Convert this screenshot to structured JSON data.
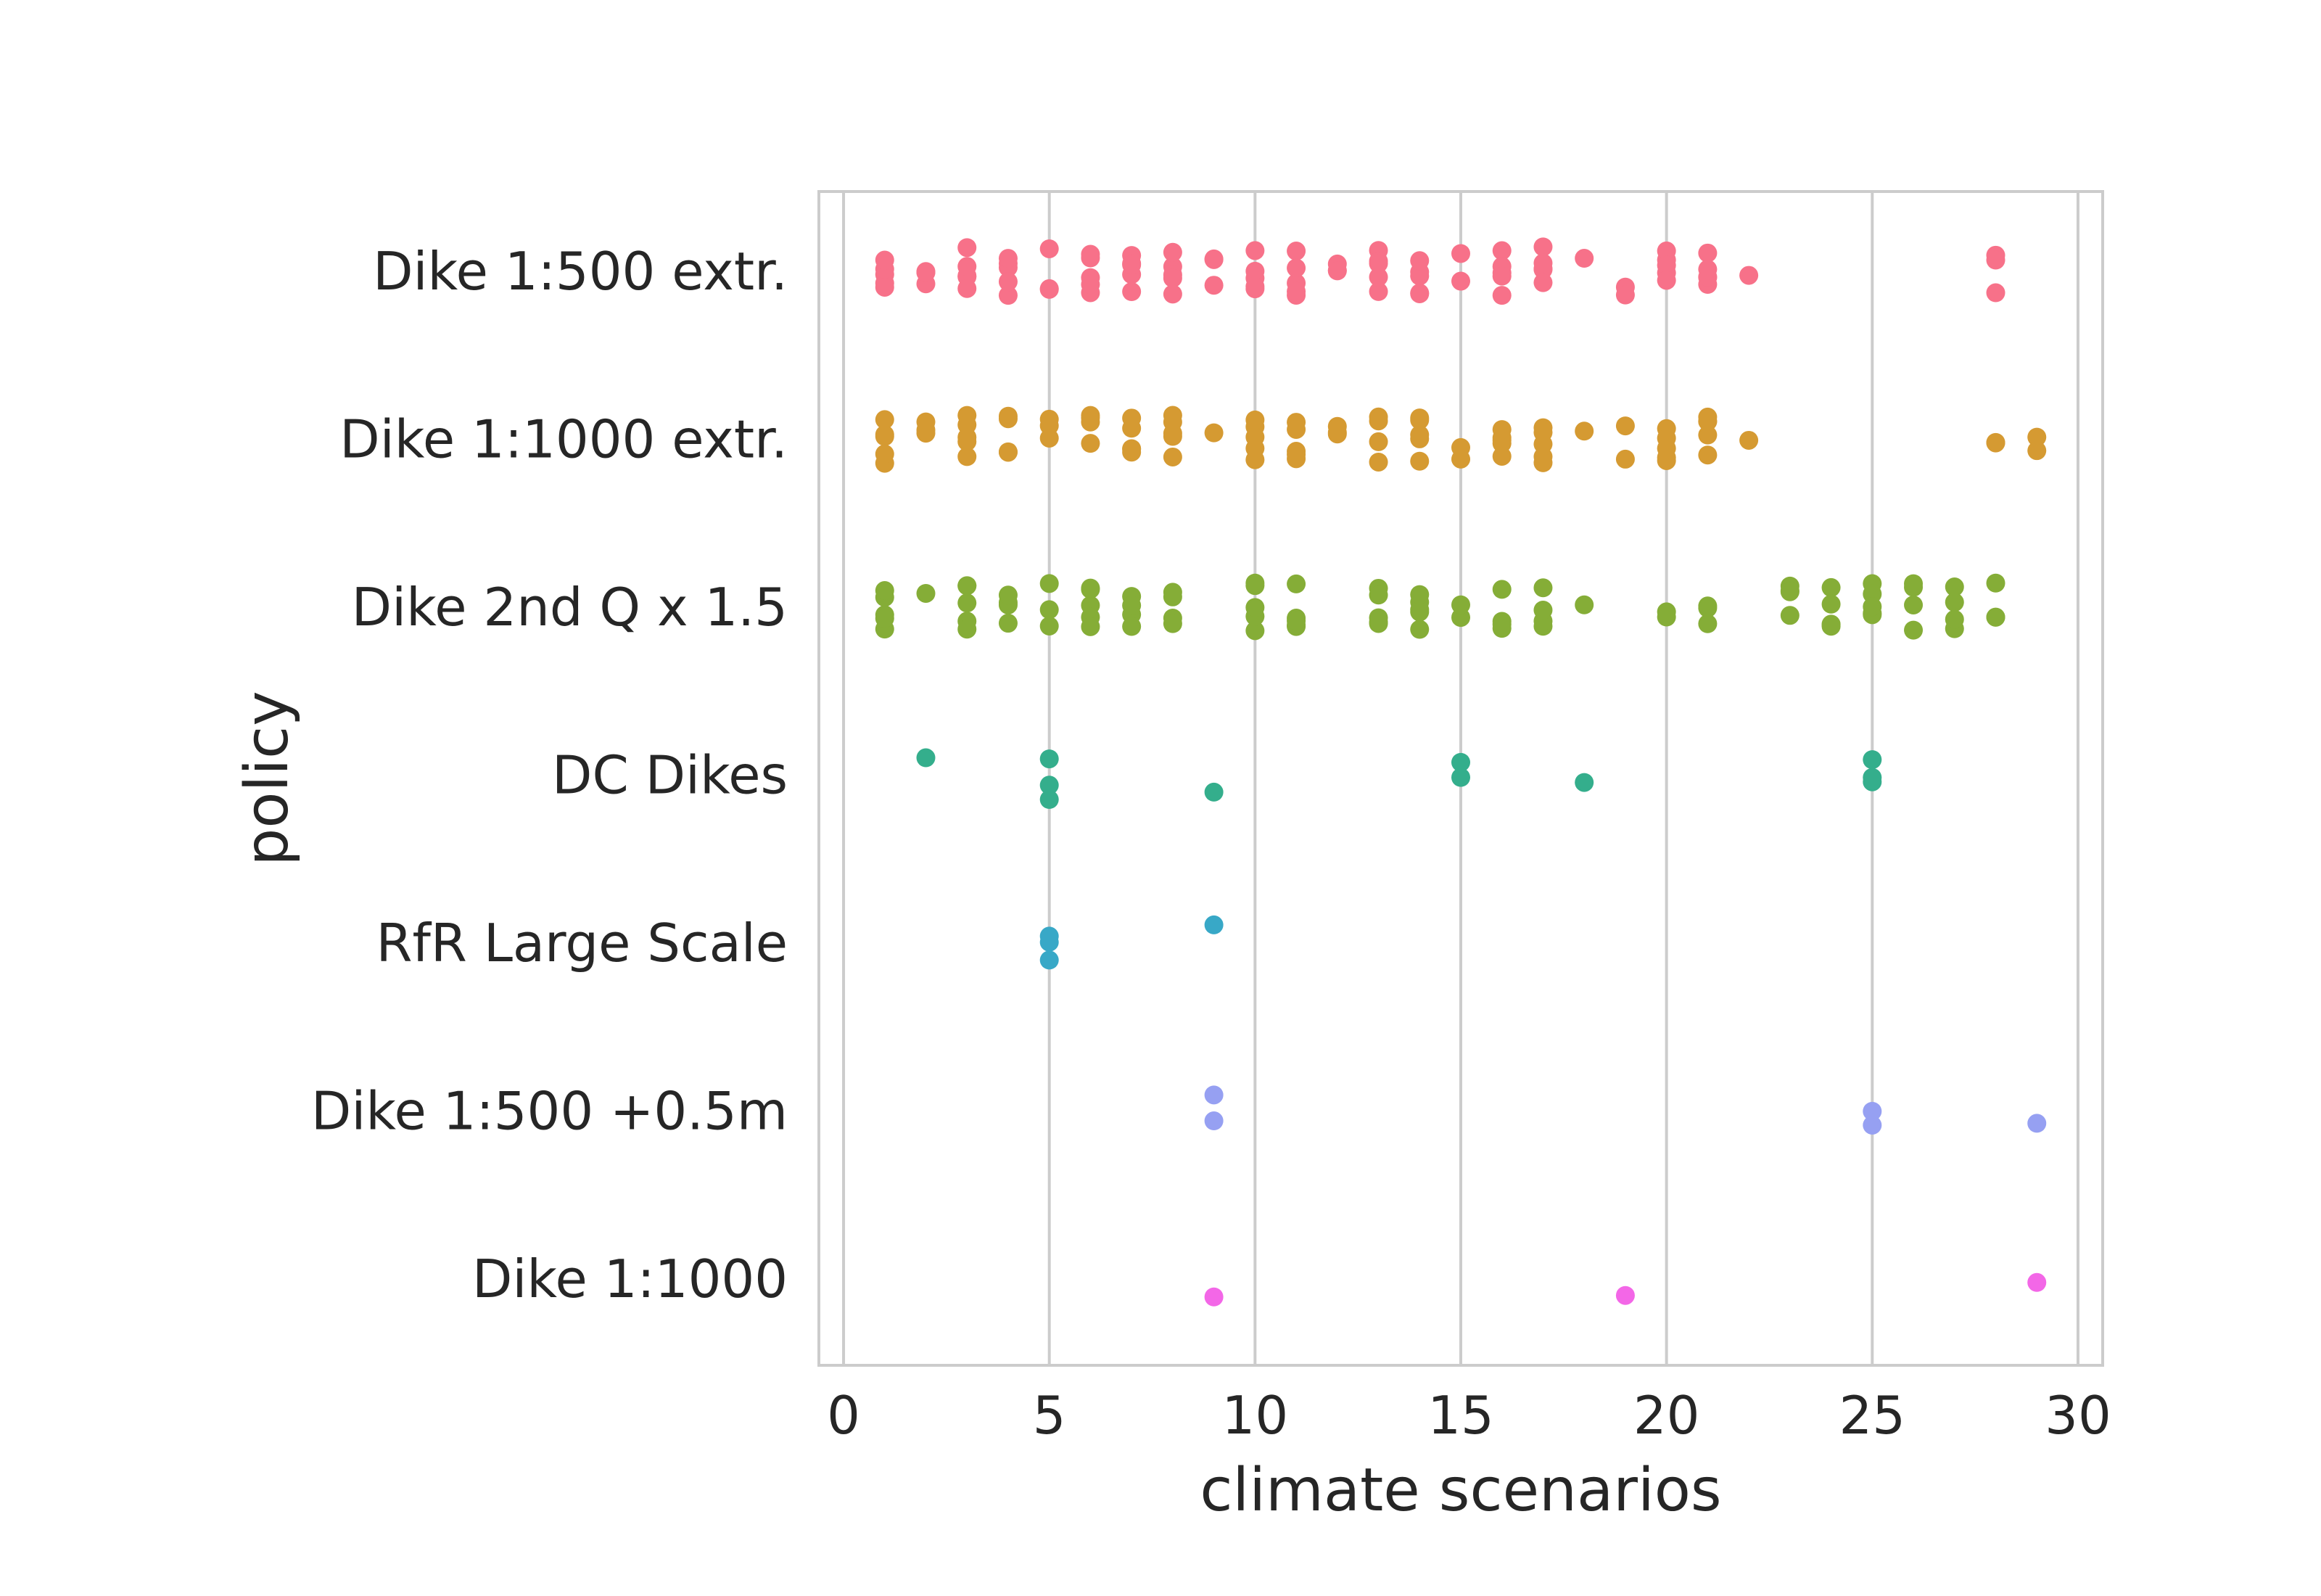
{
  "chart_data": {
    "type": "scatter",
    "subtype": "strip",
    "xlabel": "climate scenarios",
    "ylabel": "policy",
    "xlim": [
      -0.6,
      30.6
    ],
    "xticks": [
      0,
      5,
      10,
      15,
      20,
      25,
      30
    ],
    "grid": "vertical",
    "categories": [
      "Dike 1:500 extr.",
      "Dike 1:1000 extr.",
      "Dike 2nd Q x 1.5",
      "DC Dikes",
      "RfR Large Scale",
      "Dike 1:500 +0.5m",
      "Dike 1:1000"
    ],
    "series": [
      {
        "category": "Dike 1:500 extr.",
        "color": "#f77189",
        "x": [
          1,
          1,
          1,
          1,
          1,
          2,
          2,
          2,
          2,
          3,
          3,
          3,
          3,
          3,
          4,
          4,
          4,
          4,
          4,
          5,
          5,
          5,
          6,
          6,
          6,
          6,
          6,
          7,
          7,
          7,
          7,
          7,
          8,
          8,
          8,
          8,
          8,
          9,
          9,
          9,
          10,
          10,
          10,
          10,
          10,
          11,
          11,
          11,
          11,
          11,
          12,
          12,
          12,
          13,
          13,
          13,
          13,
          13,
          14,
          14,
          14,
          14,
          14,
          15,
          15,
          16,
          16,
          16,
          16,
          16,
          17,
          17,
          17,
          17,
          17,
          18,
          19,
          19,
          20,
          20,
          20,
          20,
          20,
          21,
          21,
          21,
          21,
          21,
          22,
          28,
          28,
          28
        ]
      },
      {
        "category": "Dike 1:1000 extr.",
        "color": "#d59a32",
        "x": [
          1,
          1,
          1,
          1,
          1,
          2,
          2,
          2,
          3,
          3,
          3,
          3,
          3,
          4,
          4,
          4,
          4,
          5,
          5,
          5,
          6,
          6,
          6,
          6,
          7,
          7,
          7,
          7,
          7,
          8,
          8,
          8,
          8,
          8,
          9,
          10,
          10,
          10,
          10,
          10,
          11,
          11,
          11,
          11,
          11,
          12,
          12,
          12,
          13,
          13,
          13,
          13,
          14,
          14,
          14,
          14,
          14,
          15,
          15,
          16,
          16,
          16,
          16,
          16,
          17,
          17,
          17,
          17,
          17,
          18,
          19,
          19,
          20,
          20,
          20,
          20,
          20,
          21,
          21,
          21,
          21,
          21,
          22,
          28,
          28,
          29,
          29
        ]
      },
      {
        "category": "Dike 2nd Q x 1.5",
        "color": "#85ad37",
        "x": [
          1,
          1,
          1,
          1,
          1,
          2,
          3,
          3,
          3,
          3,
          3,
          4,
          4,
          4,
          4,
          5,
          5,
          5,
          6,
          6,
          6,
          6,
          6,
          7,
          7,
          7,
          7,
          8,
          8,
          8,
          8,
          10,
          10,
          10,
          10,
          10,
          11,
          11,
          11,
          11,
          11,
          13,
          13,
          13,
          13,
          13,
          14,
          14,
          14,
          14,
          14,
          15,
          15,
          16,
          16,
          16,
          16,
          17,
          17,
          17,
          17,
          18,
          20,
          20,
          21,
          21,
          21,
          23,
          23,
          23,
          23,
          24,
          24,
          24,
          24,
          24,
          25,
          25,
          25,
          25,
          25,
          26,
          26,
          26,
          26,
          27,
          27,
          27,
          27,
          28,
          28,
          28
        ]
      },
      {
        "category": "DC Dikes",
        "color": "#34ae8c",
        "x": [
          2,
          5,
          5,
          5,
          9,
          15,
          15,
          18,
          25,
          25,
          25
        ]
      },
      {
        "category": "RfR Large Scale",
        "color": "#38a8c7",
        "x": [
          5,
          5,
          5,
          9
        ]
      },
      {
        "category": "Dike 1:500 +0.5m",
        "color": "#96a0f2",
        "x": [
          9,
          9,
          25,
          25,
          29
        ]
      },
      {
        "category": "Dike 1:1000",
        "color": "#f367e7",
        "x": [
          9,
          19,
          29
        ]
      }
    ]
  }
}
